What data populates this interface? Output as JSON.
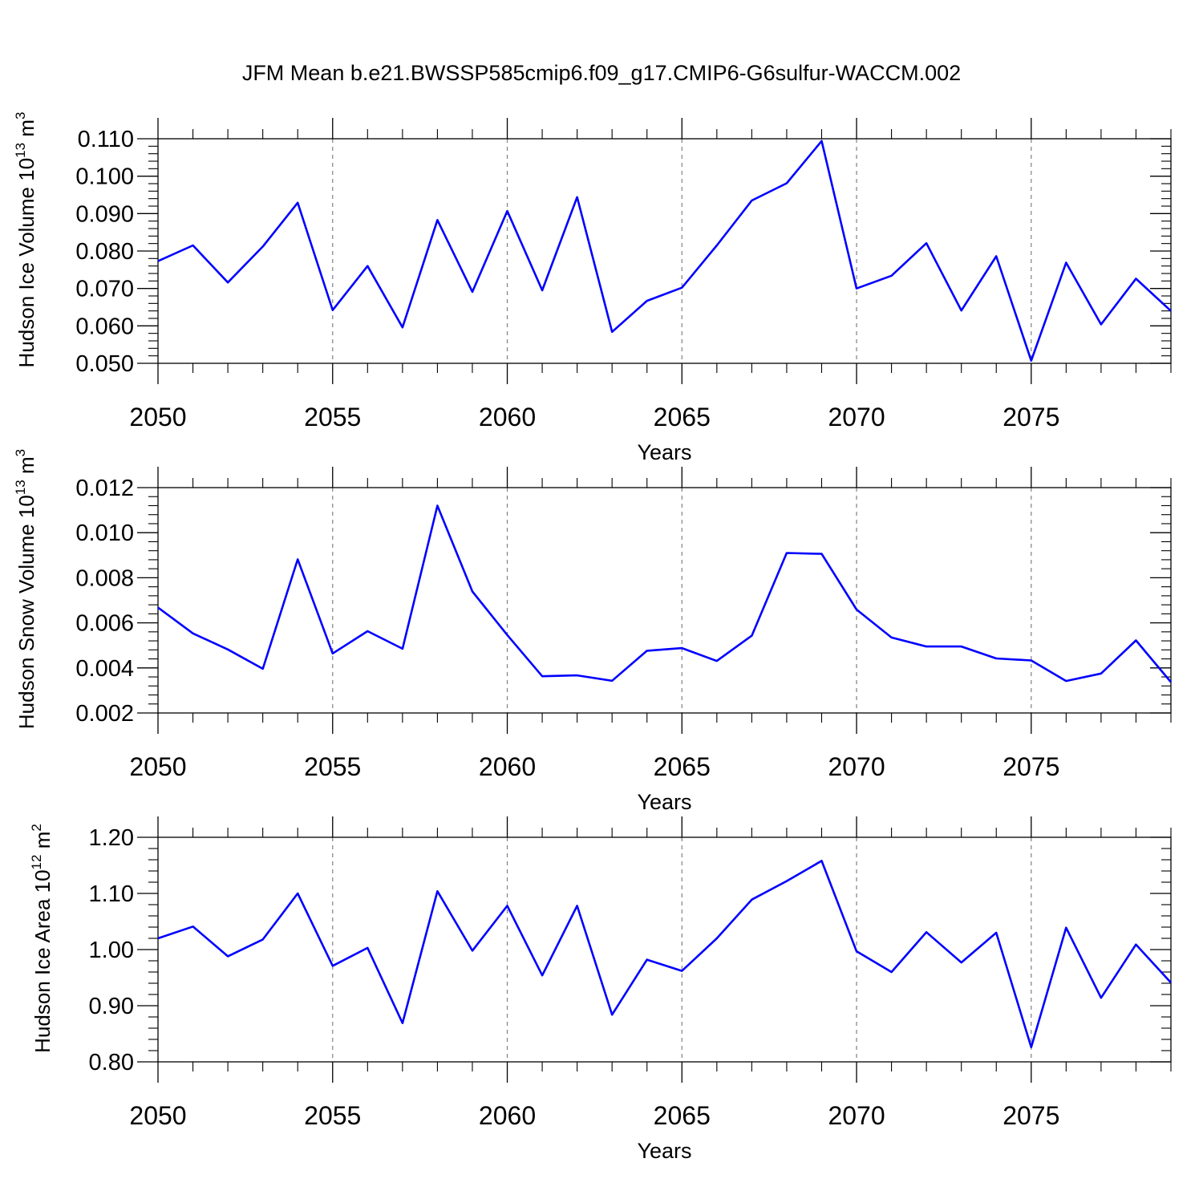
{
  "title": "JFM Mean b.e21.BWSSP585cmip6.f09_g17.CMIP6-G6sulfur-WACCM.002",
  "colors": {
    "series": "#0000ff",
    "axes": "#000000",
    "grid": "#808080"
  },
  "chart_data": [
    {
      "type": "line",
      "ylabel_prefix": "Hudson Ice Volume 10",
      "ylabel_exponent": "13",
      "ylabel_unit": " m",
      "ylabel_unit_exponent": "3",
      "xlabel": "Years",
      "xlim": [
        2050,
        2079
      ],
      "ylim": [
        0.05,
        0.11
      ],
      "xticks": [
        "2050",
        "2055",
        "2060",
        "2065",
        "2070",
        "2075"
      ],
      "yticks": [
        "0.050",
        "0.060",
        "0.070",
        "0.080",
        "0.090",
        "0.100",
        "0.110"
      ],
      "grid": "vertical dashed at major x ticks",
      "x": [
        2050,
        2051,
        2052,
        2053,
        2054,
        2055,
        2056,
        2057,
        2058,
        2059,
        2060,
        2061,
        2062,
        2063,
        2064,
        2065,
        2066,
        2067,
        2068,
        2069,
        2070,
        2071,
        2072,
        2073,
        2074,
        2075,
        2076,
        2077,
        2078,
        2079
      ],
      "values": [
        0.0773,
        0.0815,
        0.0716,
        0.0812,
        0.0929,
        0.0642,
        0.076,
        0.0596,
        0.0883,
        0.0691,
        0.0907,
        0.0695,
        0.0944,
        0.0584,
        0.0667,
        0.0702,
        0.0815,
        0.0935,
        0.0981,
        0.1094,
        0.07,
        0.0734,
        0.0821,
        0.0641,
        0.0786,
        0.0507,
        0.0769,
        0.0604,
        0.0726,
        0.064
      ]
    },
    {
      "type": "line",
      "ylabel_prefix": "Hudson Snow Volume 10",
      "ylabel_exponent": "13",
      "ylabel_unit": " m",
      "ylabel_unit_exponent": "3",
      "xlabel": "Years",
      "xlim": [
        2050,
        2079
      ],
      "ylim": [
        0.002,
        0.012
      ],
      "xticks": [
        "2050",
        "2055",
        "2060",
        "2065",
        "2070",
        "2075"
      ],
      "yticks": [
        "0.002",
        "0.004",
        "0.006",
        "0.008",
        "0.010",
        "0.012"
      ],
      "grid": "vertical dashed at major x ticks",
      "x": [
        2050,
        2051,
        2052,
        2053,
        2054,
        2055,
        2056,
        2057,
        2058,
        2059,
        2060,
        2061,
        2062,
        2063,
        2064,
        2065,
        2066,
        2067,
        2068,
        2069,
        2070,
        2071,
        2072,
        2073,
        2074,
        2075,
        2076,
        2077,
        2078,
        2079
      ],
      "values": [
        0.00668,
        0.00553,
        0.00482,
        0.00396,
        0.00882,
        0.00464,
        0.00563,
        0.00485,
        0.0112,
        0.00739,
        0.00546,
        0.00363,
        0.00367,
        0.00343,
        0.00476,
        0.00488,
        0.00431,
        0.00543,
        0.0091,
        0.00906,
        0.00659,
        0.00535,
        0.00495,
        0.00495,
        0.00442,
        0.00433,
        0.00342,
        0.00375,
        0.00522,
        0.00337
      ]
    },
    {
      "type": "line",
      "ylabel_prefix": "Hudson Ice Area 10",
      "ylabel_exponent": "12",
      "ylabel_unit": " m",
      "ylabel_unit_exponent": "2",
      "xlabel": "Years",
      "xlim": [
        2050,
        2079
      ],
      "ylim": [
        0.8,
        1.2
      ],
      "xticks": [
        "2050",
        "2055",
        "2060",
        "2065",
        "2070",
        "2075"
      ],
      "yticks": [
        "0.80",
        "0.90",
        "1.00",
        "1.10",
        "1.20"
      ],
      "grid": "vertical dashed at major x ticks",
      "x": [
        2050,
        2051,
        2052,
        2053,
        2054,
        2055,
        2056,
        2057,
        2058,
        2059,
        2060,
        2061,
        2062,
        2063,
        2064,
        2065,
        2066,
        2067,
        2068,
        2069,
        2070,
        2071,
        2072,
        2073,
        2074,
        2075,
        2076,
        2077,
        2078,
        2079
      ],
      "values": [
        1.02,
        1.041,
        0.988,
        1.018,
        1.1,
        0.971,
        1.003,
        0.869,
        1.104,
        0.998,
        1.078,
        0.954,
        1.078,
        0.884,
        0.982,
        0.962,
        1.02,
        1.089,
        1.122,
        1.158,
        0.997,
        0.96,
        1.031,
        0.977,
        1.03,
        0.826,
        1.039,
        0.914,
        1.009,
        0.941
      ]
    }
  ]
}
